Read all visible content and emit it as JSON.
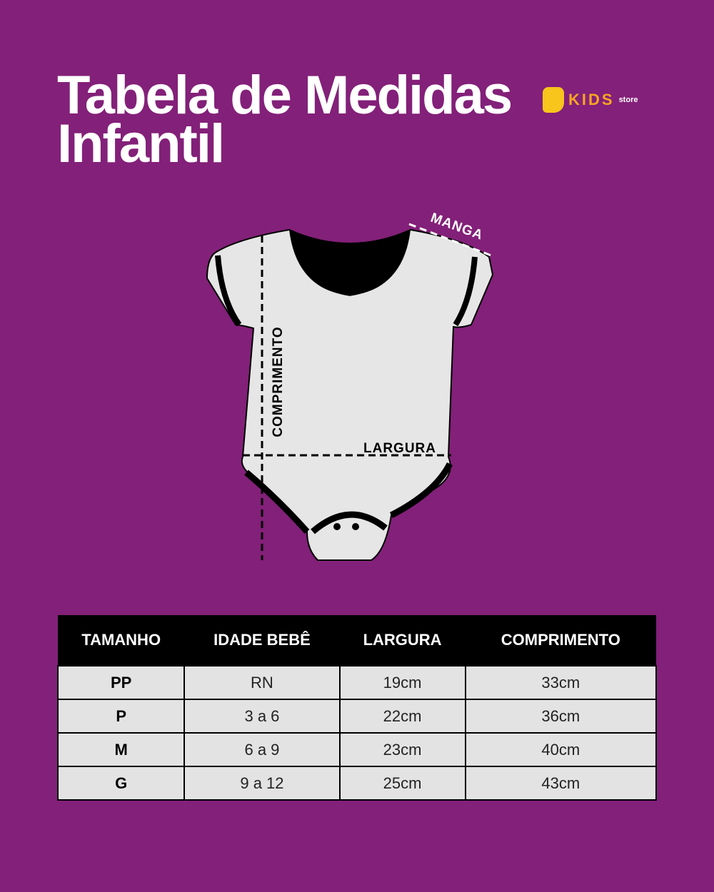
{
  "header": {
    "title_lines": [
      "Tabela de Medidas",
      "Infantil"
    ],
    "logo": {
      "brand": "KIDS",
      "suffix": "store"
    }
  },
  "diagram": {
    "labels": {
      "sleeve": "MANGA",
      "length": "COMPRIMENTO",
      "width": "LARGURA"
    }
  },
  "table": {
    "columns": [
      "TAMANHO",
      "IDADE BEBÊ",
      "LARGURA",
      "COMPRIMENTO"
    ],
    "rows": [
      [
        "PP",
        "RN",
        "19cm",
        "33cm"
      ],
      [
        "P",
        "3 a 6",
        "22cm",
        "36cm"
      ],
      [
        "M",
        "6 a 9",
        "23cm",
        "40cm"
      ],
      [
        "G",
        "9 a 12",
        "25cm",
        "43cm"
      ]
    ]
  }
}
